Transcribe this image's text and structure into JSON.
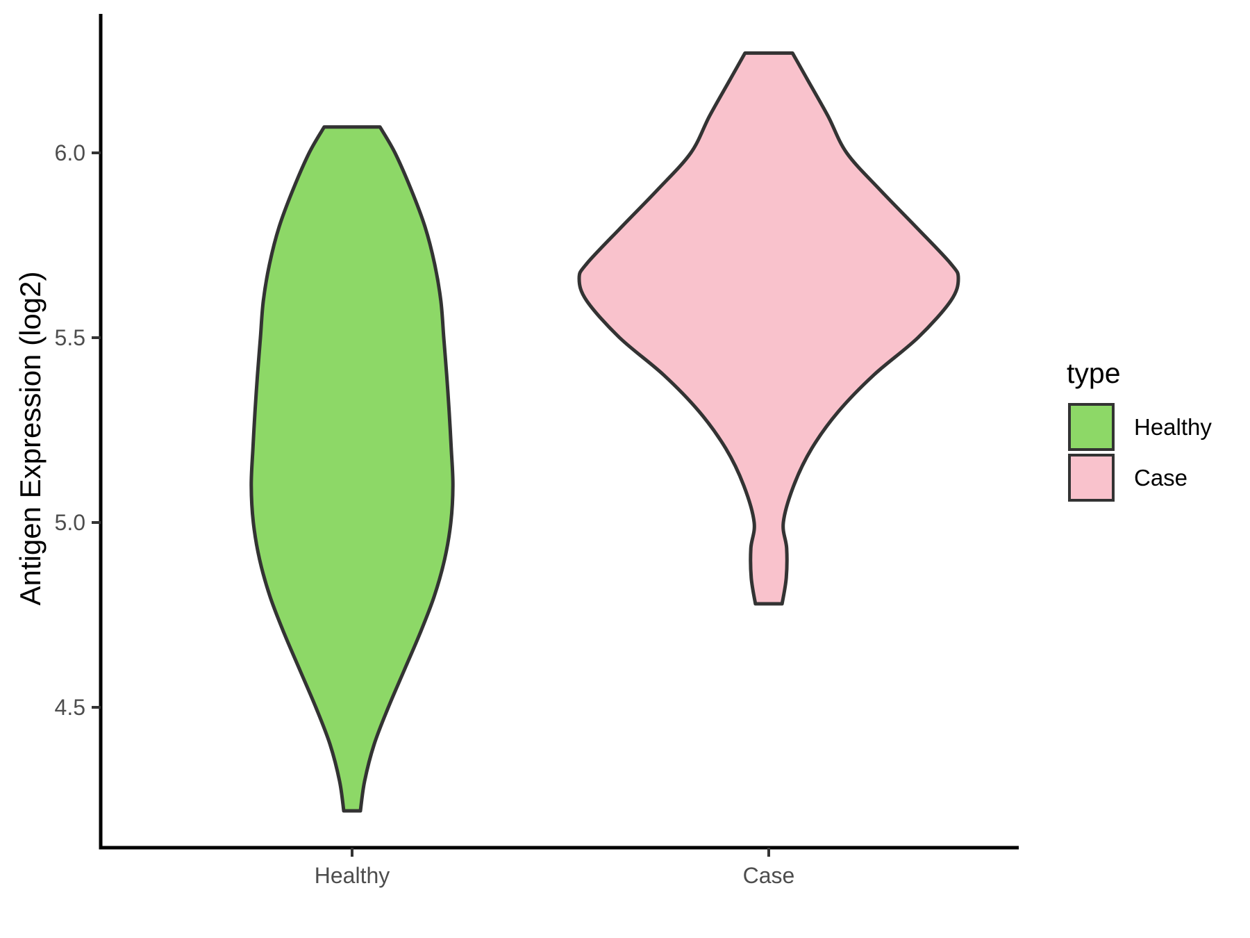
{
  "figure": {
    "background": "#FFFFFF"
  },
  "chart_data": {
    "type": "violin",
    "title": "",
    "xlabel": "",
    "ylabel": "Antigen Expression (log2)",
    "categories": [
      "Healthy",
      "Case"
    ],
    "x_axis": {
      "tick_labels": [
        "Healthy",
        "Case"
      ]
    },
    "y_axis": {
      "ticks": [
        6.0,
        5.5,
        5.0,
        4.5
      ],
      "tick_labels": [
        "6.0",
        "5.5",
        "5.0",
        "4.5"
      ],
      "range": [
        4.12,
        6.37
      ],
      "grid": false
    },
    "legend": {
      "title": "type",
      "position": "right",
      "entries": [
        {
          "label": "Healthy",
          "color": "#8DD867"
        },
        {
          "label": "Case",
          "color": "#F9C2CC"
        }
      ]
    },
    "style": {
      "outline_color": "#333333",
      "axis_color": "#000000",
      "tick_color": "#333333",
      "tick_label_color": "#4D4D4D",
      "axis_title_color": "#000000"
    },
    "violins": [
      {
        "category": "Healthy",
        "fill": "#8DD867",
        "y_min": 4.22,
        "y_max": 6.07,
        "peak_value": 5.1,
        "profile": [
          [
            6.07,
            0.067
          ],
          [
            6.0,
            0.103
          ],
          [
            5.9,
            0.142
          ],
          [
            5.8,
            0.175
          ],
          [
            5.7,
            0.198
          ],
          [
            5.6,
            0.213
          ],
          [
            5.5,
            0.22
          ],
          [
            5.4,
            0.227
          ],
          [
            5.3,
            0.233
          ],
          [
            5.2,
            0.238
          ],
          [
            5.1,
            0.242
          ],
          [
            5.0,
            0.237
          ],
          [
            4.9,
            0.222
          ],
          [
            4.8,
            0.197
          ],
          [
            4.7,
            0.163
          ],
          [
            4.6,
            0.125
          ],
          [
            4.5,
            0.087
          ],
          [
            4.4,
            0.053
          ],
          [
            4.3,
            0.03
          ],
          [
            4.22,
            0.02
          ]
        ]
      },
      {
        "category": "Case",
        "fill": "#F9C2CC",
        "y_min": 4.78,
        "y_max": 6.27,
        "peak_value": 5.66,
        "profile": [
          [
            6.27,
            0.057
          ],
          [
            6.2,
            0.092
          ],
          [
            6.1,
            0.142
          ],
          [
            6.0,
            0.187
          ],
          [
            5.9,
            0.267
          ],
          [
            5.8,
            0.353
          ],
          [
            5.7,
            0.437
          ],
          [
            5.66,
            0.455
          ],
          [
            5.6,
            0.437
          ],
          [
            5.5,
            0.358
          ],
          [
            5.4,
            0.253
          ],
          [
            5.3,
            0.167
          ],
          [
            5.2,
            0.103
          ],
          [
            5.1,
            0.06
          ],
          [
            5.0,
            0.035
          ],
          [
            4.93,
            0.043
          ],
          [
            4.85,
            0.042
          ],
          [
            4.78,
            0.032
          ]
        ]
      }
    ]
  }
}
